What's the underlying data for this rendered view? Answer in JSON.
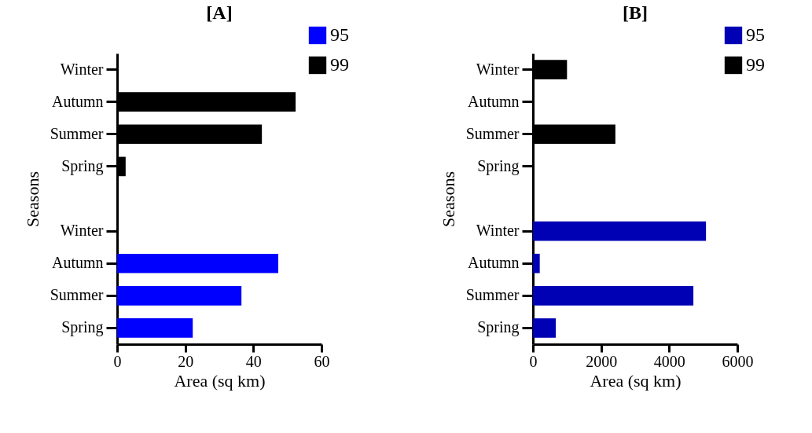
{
  "chart_data": [
    {
      "type": "bar",
      "orientation": "horizontal",
      "title": "[A]",
      "xlabel": "Area (sq km)",
      "ylabel": "Seasons",
      "categories": [
        "Winter",
        "Autumn",
        "Summer",
        "Spring",
        null,
        "Winter",
        "Autumn",
        "Summer",
        "Spring"
      ],
      "series": [
        {
          "name": "95",
          "color": "#0000ff",
          "values": [
            null,
            null,
            null,
            null,
            null,
            0,
            47.3,
            36.5,
            22.2
          ]
        },
        {
          "name": "99",
          "color": "#000000",
          "values": [
            0,
            52.4,
            42.5,
            2.5,
            null,
            null,
            null,
            null,
            null
          ]
        }
      ],
      "xlim": [
        0,
        60
      ],
      "xticks": [
        0,
        20,
        40,
        60
      ],
      "legend": "top right"
    },
    {
      "type": "bar",
      "orientation": "horizontal",
      "title": "[B]",
      "xlabel": "Area (sq km)",
      "ylabel": "Seasons",
      "categories": [
        "Winter",
        "Autumn",
        "Summer",
        "Spring",
        null,
        "Winter",
        "Autumn",
        "Summer",
        "Spring"
      ],
      "series": [
        {
          "name": "95",
          "color": "#0000b4",
          "values": [
            null,
            null,
            null,
            null,
            null,
            5080,
            200,
            4710,
            670
          ]
        },
        {
          "name": "99",
          "color": "#000000",
          "values": [
            1000,
            0,
            2420,
            20,
            null,
            null,
            null,
            null,
            null
          ]
        }
      ],
      "xlim": [
        0,
        6000
      ],
      "xticks": [
        0,
        2000,
        4000,
        6000
      ],
      "legend": "top right"
    }
  ]
}
